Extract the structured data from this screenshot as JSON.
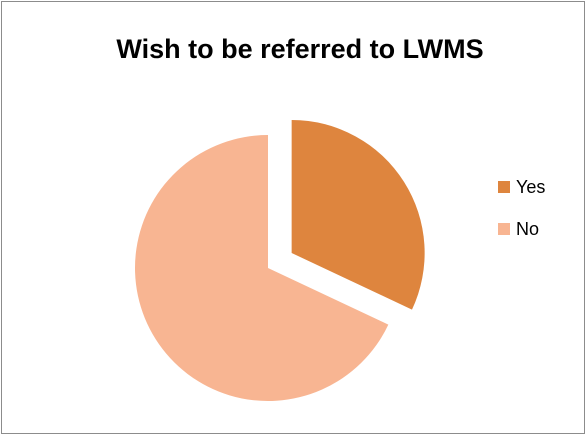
{
  "chart_data": {
    "type": "pie",
    "title": "Wish to be referred to LWMS",
    "categories": [
      "Yes",
      "No"
    ],
    "values": [
      32,
      68
    ],
    "colors": [
      "#DE853E",
      "#F8B592"
    ],
    "exploded": [
      "Yes"
    ],
    "legend": {
      "position": "right",
      "entries": [
        "Yes",
        "No"
      ]
    }
  }
}
